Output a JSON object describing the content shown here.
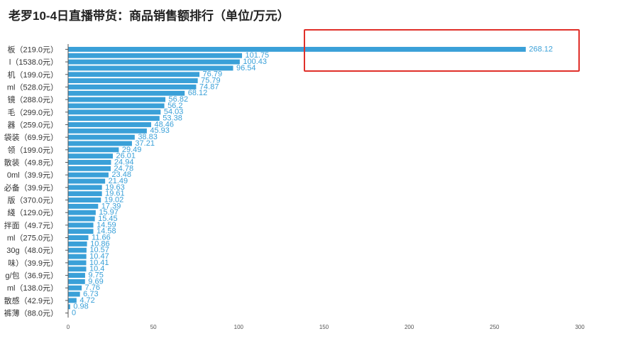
{
  "chart_data": {
    "type": "bar",
    "orientation": "horizontal",
    "title": "老罗10-4日直播带货：商品销售额排行（单位/万元）",
    "xlim": [
      0,
      300
    ],
    "x_ticks": [
      0,
      50,
      100,
      150,
      200,
      250,
      300
    ],
    "visible_category_labels": [
      "板（219.0元）",
      "l（1538.0元）",
      "机（199.0元）",
      "ml（528.0元）",
      "镜（288.0元）",
      "毛（299.0元）",
      "器（259.0元）",
      "袋装（69.9元）",
      "领（199.0元）",
      "散装（49.8元）",
      "0ml（39.9元）",
      "必备（39.9元）",
      "版（370.0元）",
      "綫（129.0元）",
      "拌面（49.7元）",
      "ml（275.0元）",
      "30g（48.0元）",
      "味）（39.9元）",
      "g/包（36.9元）",
      "ml（138.0元）",
      "散感（42.9元）",
      "裤薄（88.0元）"
    ],
    "values": [
      268.12,
      101.75,
      100.43,
      96.54,
      76.79,
      75.79,
      74.87,
      68.12,
      56.82,
      56.2,
      54.03,
      53.38,
      48.46,
      45.93,
      38.83,
      37.21,
      29.49,
      26.01,
      24.94,
      24.78,
      23.48,
      21.49,
      19.63,
      19.61,
      19.02,
      17.39,
      15.97,
      15.45,
      14.59,
      14.58,
      11.66,
      10.86,
      10.57,
      10.47,
      10.41,
      10.4,
      9.75,
      9.69,
      7.76,
      6.73,
      4.72,
      0.98,
      0
    ],
    "value_labels": [
      "268.12",
      "101.75",
      "100.43",
      "96.54",
      "76.79",
      "75.79",
      "74.87",
      "68.12",
      "56.82",
      "56.2",
      "54.03",
      "53.38",
      "48.46",
      "45.93",
      "38.83",
      "37.21",
      "29.49",
      "26.01",
      "24.94",
      "24.78",
      "23.48",
      "21.49",
      "19.63",
      "19.61",
      "19.02",
      "17.39",
      "15.97",
      "15.45",
      "14.59",
      "14.58",
      "11.66",
      "10.86",
      "10.57",
      "10.47",
      "10.41",
      "10.4",
      "9.75",
      "9.69",
      "7.76",
      "6.73",
      "4.72",
      "0.98",
      "0"
    ],
    "bar_color": "#3aa0d8",
    "grid": false,
    "highlight": {
      "target": "top-bar",
      "color": "#e0302a"
    }
  }
}
